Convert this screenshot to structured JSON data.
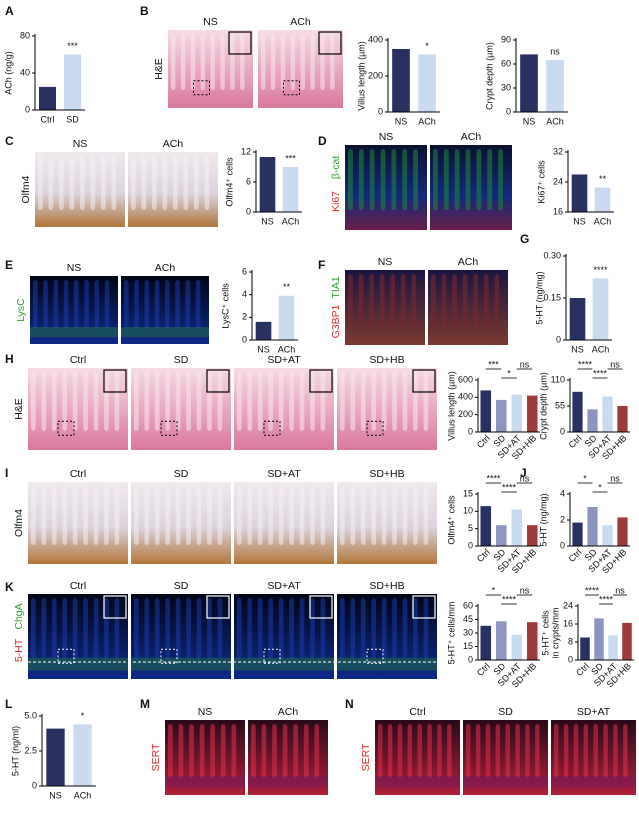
{
  "letters": [
    "A",
    "B",
    "C",
    "D",
    "E",
    "F",
    "G",
    "H",
    "I",
    "J",
    "K",
    "L",
    "M",
    "N"
  ],
  "image_groups": [
    {
      "labels": [
        "NS",
        "ACh"
      ],
      "side_labels": [
        {
          "text": "H&E",
          "color": "#111111"
        }
      ]
    },
    {
      "labels": [
        "NS",
        "ACh"
      ],
      "side_labels": [
        {
          "text": "Olfm4",
          "color": "#111111"
        }
      ]
    },
    {
      "labels": [
        "NS",
        "ACh"
      ],
      "side_labels": [
        {
          "text": "Ki67",
          "color": "#e02a2a"
        },
        {
          "text": "β-cat",
          "color": "#2f9e2f"
        }
      ]
    },
    {
      "labels": [
        "NS",
        "ACh"
      ],
      "side_labels": [
        {
          "text": "LysC",
          "color": "#2f9e2f"
        }
      ]
    },
    {
      "labels": [
        "NS",
        "ACh"
      ],
      "side_labels": [
        {
          "text": "G3BP1",
          "color": "#e02a2a"
        },
        {
          "text": "TIA1",
          "color": "#2f9e2f"
        }
      ]
    },
    {
      "labels": [
        "Ctrl",
        "SD",
        "SD+AT",
        "SD+HB"
      ],
      "side_labels": [
        {
          "text": "H&E",
          "color": "#111111"
        }
      ]
    },
    {
      "labels": [
        "Ctrl",
        "SD",
        "SD+AT",
        "SD+HB"
      ],
      "side_labels": [
        {
          "text": "Olfm4",
          "color": "#111111"
        }
      ]
    },
    {
      "labels": [
        "Ctrl",
        "SD",
        "SD+AT",
        "SD+HB"
      ],
      "side_labels": [
        {
          "text": "5-HT",
          "color": "#e02a2a"
        },
        {
          "text": "ChgA",
          "color": "#2f9e2f"
        }
      ]
    },
    {
      "labels": [
        "NS",
        "ACh"
      ],
      "side_labels": [
        {
          "text": "SERT",
          "color": "#e02a2a"
        }
      ]
    },
    {
      "labels": [
        "Ctrl",
        "SD",
        "SD+AT"
      ],
      "side_labels": [
        {
          "text": "SERT",
          "color": "#e02a2a"
        }
      ]
    }
  ],
  "charts": [
    {
      "type": "bar",
      "ylabel": [
        "ACh (ng/g)"
      ],
      "categories": [
        "Ctrl",
        "SD"
      ],
      "values": [
        25,
        60
      ],
      "ylim": [
        0,
        80
      ],
      "yticks": [
        0,
        40,
        80
      ],
      "colors": [
        "#283161",
        "#c9daf1"
      ],
      "significance": [
        "***"
      ]
    },
    {
      "type": "bar",
      "ylabel": [
        "Villus length (µm)"
      ],
      "categories": [
        "NS",
        "ACh"
      ],
      "values": [
        350,
        320
      ],
      "ylim": [
        0,
        400
      ],
      "yticks": [
        0,
        200,
        400
      ],
      "colors": [
        "#283161",
        "#c9daf1"
      ],
      "significance": [
        "*"
      ]
    },
    {
      "type": "bar",
      "ylabel": [
        "Crypt depth (µm)"
      ],
      "categories": [
        "NS",
        "ACh"
      ],
      "values": [
        72,
        65
      ],
      "ylim": [
        0,
        90
      ],
      "yticks": [
        0,
        30,
        60,
        90
      ],
      "colors": [
        "#283161",
        "#c9daf1"
      ],
      "significance": [
        "ns"
      ]
    },
    {
      "type": "bar",
      "ylabel": [
        "Olfm4⁺ cells"
      ],
      "categories": [
        "NS",
        "ACh"
      ],
      "values": [
        11,
        9
      ],
      "ylim": [
        0,
        12
      ],
      "yticks": [
        0,
        6,
        12
      ],
      "colors": [
        "#283161",
        "#c9daf1"
      ],
      "significance": [
        "***"
      ]
    },
    {
      "type": "bar",
      "ylabel": [
        "Ki67⁺ cells"
      ],
      "categories": [
        "NS",
        "ACh"
      ],
      "values": [
        26,
        22.5
      ],
      "ylim": [
        16,
        32
      ],
      "yticks": [
        16,
        24,
        32
      ],
      "colors": [
        "#283161",
        "#c9daf1"
      ],
      "significance": [
        "**"
      ]
    },
    {
      "type": "bar",
      "ylabel": [
        "LysC⁺ cells"
      ],
      "categories": [
        "NS",
        "ACh"
      ],
      "values": [
        1.6,
        3.9
      ],
      "ylim": [
        0,
        6
      ],
      "yticks": [
        0,
        2,
        4,
        6
      ],
      "colors": [
        "#283161",
        "#c9daf1"
      ],
      "significance": [
        "**"
      ]
    },
    {
      "type": "bar",
      "ylabel": [
        "5-HT (ng/mg)"
      ],
      "categories": [
        "NS",
        "ACh"
      ],
      "values": [
        0.15,
        0.22
      ],
      "ylim": [
        0,
        0.3
      ],
      "yticks": [
        0,
        0.15,
        {
          "value": 0.3,
          "label": "0.30"
        }
      ],
      "colors": [
        "#283161",
        "#c9daf1"
      ],
      "significance": [
        "****"
      ]
    },
    {
      "type": "bar",
      "ylabel": [
        "Villus length (µm)"
      ],
      "categories": [
        "Ctrl",
        "SD",
        "SD+AT",
        "SD+HB"
      ],
      "values": [
        480,
        370,
        430,
        420
      ],
      "ylim": [
        0,
        600
      ],
      "yticks": [
        0,
        200,
        400,
        600
      ],
      "colors": [
        "#283161",
        "#8e95c0",
        "#c9daf1",
        "#9e3a3a"
      ],
      "significance": [
        "***",
        "*",
        "ns"
      ]
    },
    {
      "type": "bar",
      "ylabel": [
        "Crypt depth (µm)"
      ],
      "categories": [
        "Ctrl",
        "SD",
        "SD+AT",
        "SD+HB"
      ],
      "values": [
        85,
        48,
        75,
        55
      ],
      "ylim": [
        0,
        110
      ],
      "yticks": [
        0,
        55,
        110
      ],
      "colors": [
        "#283161",
        "#8e95c0",
        "#c9daf1",
        "#9e3a3a"
      ],
      "significance": [
        "****",
        "****",
        "ns"
      ]
    },
    {
      "type": "bar",
      "ylabel": [
        "Olfm4⁺ cells"
      ],
      "categories": [
        "Ctrl",
        "SD",
        "SD+AT",
        "SD+HB"
      ],
      "values": [
        11.5,
        6,
        10.5,
        6
      ],
      "ylim": [
        0,
        15
      ],
      "yticks": [
        0,
        5,
        10,
        15
      ],
      "colors": [
        "#283161",
        "#8e95c0",
        "#c9daf1",
        "#9e3a3a"
      ],
      "significance": [
        "****",
        "****",
        "ns"
      ]
    },
    {
      "type": "bar",
      "ylabel": [
        "5-HT (ng/mg)"
      ],
      "categories": [
        "Ctrl",
        "SD",
        "SD+AT",
        "SD+HB"
      ],
      "values": [
        1.8,
        3,
        1.6,
        2.2
      ],
      "ylim": [
        0,
        4
      ],
      "yticks": [
        0,
        2,
        4
      ],
      "colors": [
        "#283161",
        "#8e95c0",
        "#c9daf1",
        "#9e3a3a"
      ],
      "significance": [
        "*",
        "*",
        "ns"
      ]
    },
    {
      "type": "bar",
      "ylabel": [
        "5-HT⁺ cells/mm"
      ],
      "categories": [
        "Ctrl",
        "SD",
        "SD+AT",
        "SD+HB"
      ],
      "values": [
        38,
        43,
        28,
        42
      ],
      "ylim": [
        0,
        60
      ],
      "yticks": [
        0,
        15,
        30,
        45,
        60
      ],
      "colors": [
        "#283161",
        "#8e95c0",
        "#c9daf1",
        "#9e3a3a"
      ],
      "significance": [
        "*",
        "****",
        "ns"
      ]
    },
    {
      "type": "bar",
      "ylabel": [
        "5-HT⁺ cells",
        "in crypts/mm"
      ],
      "categories": [
        "Ctrl",
        "SD",
        "SD+AT",
        "SD+HB"
      ],
      "values": [
        10,
        18.5,
        11,
        16.5
      ],
      "ylim": [
        0,
        24
      ],
      "yticks": [
        0,
        8,
        16,
        24
      ],
      "colors": [
        "#283161",
        "#8e95c0",
        "#c9daf1",
        "#9e3a3a"
      ],
      "significance": [
        "****",
        "****",
        "ns"
      ]
    },
    {
      "type": "bar",
      "ylabel": [
        "5-HT (ng/ml)"
      ],
      "categories": [
        "NS",
        "ACh"
      ],
      "values": [
        4.1,
        4.4
      ],
      "ylim": [
        0,
        5
      ],
      "yticks": [
        0,
        2.5,
        {
          "value": 5,
          "label": "5.0"
        }
      ],
      "colors": [
        "#283161",
        "#c9daf1"
      ],
      "significance": [
        "*"
      ]
    }
  ]
}
